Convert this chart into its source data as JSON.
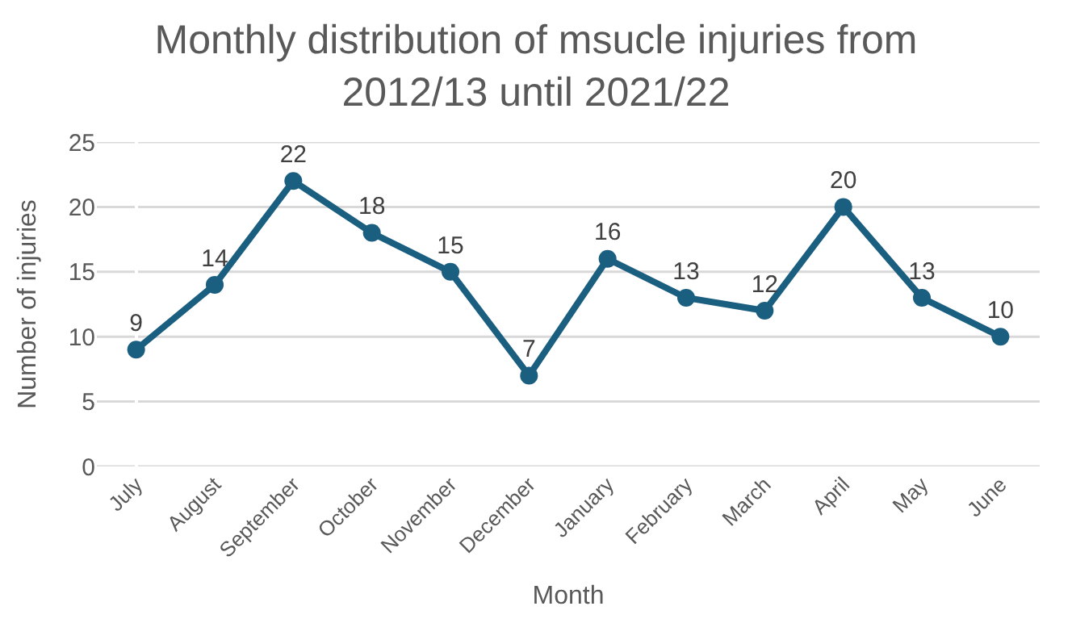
{
  "chart_data": {
    "type": "line",
    "title": "Monthly distribution of msucle injuries from\n2012/13 until 2021/22",
    "xlabel": "Month",
    "ylabel": "Number of injuries",
    "categories": [
      "July",
      "August",
      "September",
      "October",
      "November",
      "December",
      "January",
      "February",
      "March",
      "April",
      "May",
      "June"
    ],
    "series": [
      {
        "color": "#1a5e80",
        "values": [
          9,
          14,
          22,
          18,
          15,
          7,
          16,
          13,
          12,
          20,
          13,
          10
        ]
      }
    ],
    "ylim": [
      0,
      25
    ],
    "yticks": [
      0,
      5,
      10,
      15,
      20,
      25
    ],
    "grid": "y",
    "marker": "circle",
    "line_style": "solid",
    "data_labels": true,
    "legend": false
  }
}
